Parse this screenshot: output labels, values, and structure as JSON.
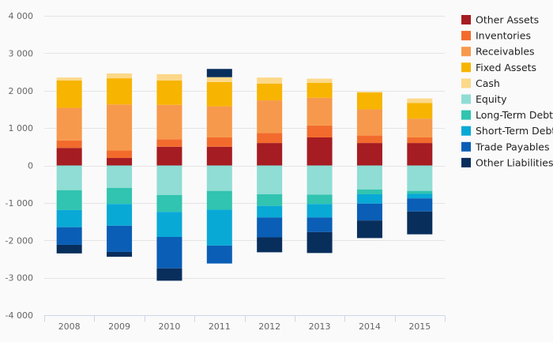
{
  "chart_data": {
    "type": "bar",
    "stacked": true,
    "title": "",
    "xlabel": "",
    "ylabel": "",
    "ylim": [
      -4000,
      4000
    ],
    "y_ticks": [
      4000,
      3000,
      2000,
      1000,
      0,
      -1000,
      -2000,
      -3000,
      -4000
    ],
    "y_tick_labels": [
      "4 000",
      "3 000",
      "2 000",
      "1 000",
      "0",
      "-1 000",
      "-2 000",
      "-3 000",
      "-4 000"
    ],
    "categories": [
      "2008",
      "2009",
      "2010",
      "2011",
      "2012",
      "2013",
      "2014",
      "2015"
    ],
    "grid": true,
    "legend_position": "right",
    "series": [
      {
        "name": "Other Assets",
        "color": "#a51c22",
        "values": [
          470,
          200,
          500,
          500,
          600,
          750,
          600,
          600
        ]
      },
      {
        "name": "Inventories",
        "color": "#f26b2d",
        "values": [
          200,
          200,
          200,
          250,
          270,
          320,
          200,
          150
        ]
      },
      {
        "name": "Receivables",
        "color": "#f7994c",
        "values": [
          870,
          1230,
          920,
          830,
          870,
          740,
          700,
          500
        ]
      },
      {
        "name": "Fixed Assets",
        "color": "#f7b400",
        "values": [
          730,
          700,
          650,
          650,
          450,
          400,
          450,
          420
        ]
      },
      {
        "name": "Cash",
        "color": "#fcd889",
        "values": [
          80,
          130,
          170,
          130,
          160,
          110,
          20,
          120
        ]
      },
      {
        "name": "Equity",
        "color": "#8fddd4",
        "values": [
          -660,
          -600,
          -790,
          -680,
          -770,
          -780,
          -640,
          -680
        ]
      },
      {
        "name": "Long-Term Debt",
        "color": "#31c4b0",
        "values": [
          -530,
          -430,
          -450,
          -500,
          -310,
          -250,
          -130,
          -80
        ]
      },
      {
        "name": "Short-Term Debt",
        "color": "#09a9d6",
        "values": [
          -460,
          -580,
          -670,
          -960,
          -310,
          -360,
          -250,
          -120
        ]
      },
      {
        "name": "Trade Payables",
        "color": "#0a5eb5",
        "values": [
          -470,
          -700,
          -840,
          -480,
          -530,
          -390,
          -450,
          -350
        ]
      },
      {
        "name": "Other Liabilities",
        "color": "#082e5c",
        "values": [
          -230,
          -130,
          -330,
          220,
          -400,
          -560,
          -470,
          -610
        ]
      }
    ]
  }
}
